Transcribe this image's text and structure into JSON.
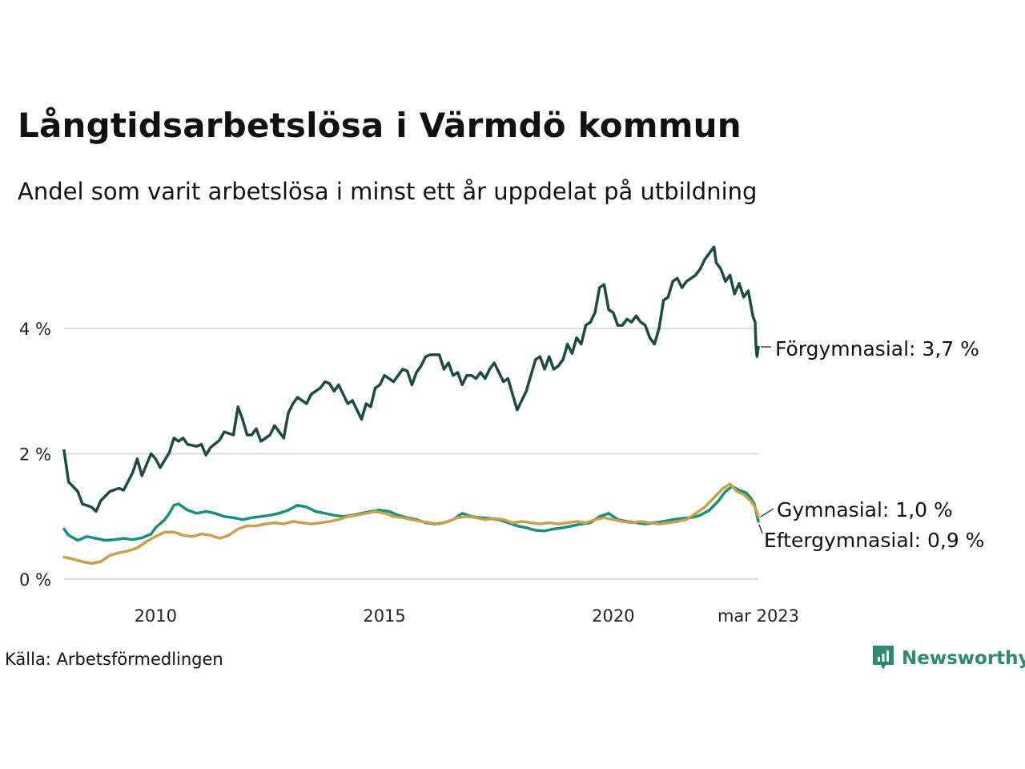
{
  "title": "Långtidsarbetslösa i Värmdö kommun",
  "subtitle": "Andel som varit arbetslösa i minst ett år uppdelat på utbildning",
  "source": "Källa: Arbetsförmedlingen",
  "brand": {
    "name": "Newsworthy",
    "icon": "newsworthy-logo-icon",
    "color": "#2c8a73"
  },
  "chart_data": {
    "type": "line",
    "ylim": [
      0,
      5.5
    ],
    "xlim": [
      2008.0,
      2023.17
    ],
    "yticks": [
      {
        "value": 0,
        "label": "0 %"
      },
      {
        "value": 2,
        "label": "2 %"
      },
      {
        "value": 4,
        "label": "4 %"
      }
    ],
    "xticks": [
      {
        "value": 2010,
        "label": "2010"
      },
      {
        "value": 2015,
        "label": "2015"
      },
      {
        "value": 2020,
        "label": "2020"
      },
      {
        "value": 2023.17,
        "label": "mar 2023"
      }
    ],
    "grid": true,
    "series": [
      {
        "name": "Förgymnasial",
        "end_label": "Förgymnasial: 3,7 %",
        "color": "#1f4a40",
        "points": [
          [
            2008.0,
            2.05
          ],
          [
            2008.1,
            1.55
          ],
          [
            2008.3,
            1.4
          ],
          [
            2008.4,
            1.2
          ],
          [
            2008.6,
            1.15
          ],
          [
            2008.7,
            1.08
          ],
          [
            2008.8,
            1.25
          ],
          [
            2009.0,
            1.4
          ],
          [
            2009.2,
            1.45
          ],
          [
            2009.3,
            1.42
          ],
          [
            2009.5,
            1.7
          ],
          [
            2009.6,
            1.92
          ],
          [
            2009.7,
            1.65
          ],
          [
            2009.9,
            2.0
          ],
          [
            2010.0,
            1.92
          ],
          [
            2010.1,
            1.78
          ],
          [
            2010.3,
            2.02
          ],
          [
            2010.4,
            2.25
          ],
          [
            2010.5,
            2.2
          ],
          [
            2010.6,
            2.25
          ],
          [
            2010.7,
            2.15
          ],
          [
            2010.9,
            2.12
          ],
          [
            2011.0,
            2.15
          ],
          [
            2011.1,
            1.98
          ],
          [
            2011.2,
            2.1
          ],
          [
            2011.4,
            2.22
          ],
          [
            2011.5,
            2.35
          ],
          [
            2011.7,
            2.3
          ],
          [
            2011.8,
            2.75
          ],
          [
            2011.9,
            2.55
          ],
          [
            2012.0,
            2.3
          ],
          [
            2012.1,
            2.3
          ],
          [
            2012.2,
            2.4
          ],
          [
            2012.3,
            2.2
          ],
          [
            2012.5,
            2.3
          ],
          [
            2012.6,
            2.45
          ],
          [
            2012.8,
            2.25
          ],
          [
            2012.9,
            2.65
          ],
          [
            2013.0,
            2.8
          ],
          [
            2013.1,
            2.9
          ],
          [
            2013.3,
            2.8
          ],
          [
            2013.4,
            2.95
          ],
          [
            2013.6,
            3.05
          ],
          [
            2013.7,
            3.15
          ],
          [
            2013.8,
            3.12
          ],
          [
            2013.9,
            3.0
          ],
          [
            2014.0,
            3.1
          ],
          [
            2014.1,
            2.95
          ],
          [
            2014.2,
            2.8
          ],
          [
            2014.3,
            2.85
          ],
          [
            2014.5,
            2.55
          ],
          [
            2014.6,
            2.8
          ],
          [
            2014.7,
            2.75
          ],
          [
            2014.8,
            3.05
          ],
          [
            2014.9,
            3.1
          ],
          [
            2015.0,
            3.25
          ],
          [
            2015.2,
            3.15
          ],
          [
            2015.3,
            3.25
          ],
          [
            2015.4,
            3.35
          ],
          [
            2015.5,
            3.32
          ],
          [
            2015.6,
            3.1
          ],
          [
            2015.7,
            3.3
          ],
          [
            2015.8,
            3.4
          ],
          [
            2015.9,
            3.55
          ],
          [
            2016.0,
            3.58
          ],
          [
            2016.2,
            3.58
          ],
          [
            2016.3,
            3.35
          ],
          [
            2016.4,
            3.45
          ],
          [
            2016.5,
            3.25
          ],
          [
            2016.6,
            3.3
          ],
          [
            2016.7,
            3.1
          ],
          [
            2016.8,
            3.25
          ],
          [
            2016.9,
            3.25
          ],
          [
            2017.0,
            3.2
          ],
          [
            2017.1,
            3.3
          ],
          [
            2017.2,
            3.2
          ],
          [
            2017.3,
            3.35
          ],
          [
            2017.4,
            3.45
          ],
          [
            2017.6,
            3.15
          ],
          [
            2017.7,
            3.2
          ],
          [
            2017.8,
            2.95
          ],
          [
            2017.9,
            2.7
          ],
          [
            2018.0,
            2.85
          ],
          [
            2018.1,
            3.0
          ],
          [
            2018.3,
            3.5
          ],
          [
            2018.4,
            3.55
          ],
          [
            2018.5,
            3.35
          ],
          [
            2018.6,
            3.55
          ],
          [
            2018.7,
            3.35
          ],
          [
            2018.8,
            3.4
          ],
          [
            2018.9,
            3.5
          ],
          [
            2019.0,
            3.75
          ],
          [
            2019.1,
            3.6
          ],
          [
            2019.2,
            3.85
          ],
          [
            2019.3,
            3.75
          ],
          [
            2019.4,
            4.05
          ],
          [
            2019.5,
            4.1
          ],
          [
            2019.6,
            4.25
          ],
          [
            2019.7,
            4.65
          ],
          [
            2019.8,
            4.7
          ],
          [
            2019.9,
            4.3
          ],
          [
            2020.0,
            4.25
          ],
          [
            2020.1,
            4.05
          ],
          [
            2020.2,
            4.05
          ],
          [
            2020.3,
            4.15
          ],
          [
            2020.4,
            4.1
          ],
          [
            2020.5,
            4.2
          ],
          [
            2020.6,
            4.1
          ],
          [
            2020.7,
            4.05
          ],
          [
            2020.8,
            3.85
          ],
          [
            2020.9,
            3.75
          ],
          [
            2021.0,
            4.0
          ],
          [
            2021.1,
            4.45
          ],
          [
            2021.2,
            4.5
          ],
          [
            2021.3,
            4.75
          ],
          [
            2021.4,
            4.8
          ],
          [
            2021.5,
            4.65
          ],
          [
            2021.6,
            4.75
          ],
          [
            2021.7,
            4.8
          ],
          [
            2021.8,
            4.85
          ],
          [
            2021.9,
            4.95
          ],
          [
            2022.0,
            5.1
          ],
          [
            2022.1,
            5.2
          ],
          [
            2022.2,
            5.3
          ],
          [
            2022.25,
            5.05
          ],
          [
            2022.35,
            4.95
          ],
          [
            2022.45,
            4.75
          ],
          [
            2022.55,
            4.85
          ],
          [
            2022.65,
            4.55
          ],
          [
            2022.75,
            4.72
          ],
          [
            2022.85,
            4.5
          ],
          [
            2022.95,
            4.6
          ],
          [
            2023.0,
            4.4
          ],
          [
            2023.05,
            4.2
          ],
          [
            2023.1,
            4.1
          ],
          [
            2023.12,
            3.7
          ],
          [
            2023.14,
            3.55
          ],
          [
            2023.17,
            3.7
          ]
        ]
      },
      {
        "name": "Gymnasial",
        "end_label": "Gymnasial: 1,0 %",
        "color": "#c9a04e",
        "points": [
          [
            2008.0,
            0.35
          ],
          [
            2008.2,
            0.32
          ],
          [
            2008.4,
            0.28
          ],
          [
            2008.6,
            0.25
          ],
          [
            2008.8,
            0.28
          ],
          [
            2009.0,
            0.38
          ],
          [
            2009.2,
            0.42
          ],
          [
            2009.4,
            0.45
          ],
          [
            2009.6,
            0.5
          ],
          [
            2009.8,
            0.6
          ],
          [
            2010.0,
            0.68
          ],
          [
            2010.2,
            0.75
          ],
          [
            2010.4,
            0.75
          ],
          [
            2010.6,
            0.7
          ],
          [
            2010.8,
            0.68
          ],
          [
            2011.0,
            0.72
          ],
          [
            2011.2,
            0.7
          ],
          [
            2011.4,
            0.65
          ],
          [
            2011.6,
            0.7
          ],
          [
            2011.8,
            0.8
          ],
          [
            2012.0,
            0.85
          ],
          [
            2012.2,
            0.85
          ],
          [
            2012.4,
            0.88
          ],
          [
            2012.6,
            0.9
          ],
          [
            2012.8,
            0.88
          ],
          [
            2013.0,
            0.92
          ],
          [
            2013.2,
            0.9
          ],
          [
            2013.4,
            0.88
          ],
          [
            2013.6,
            0.9
          ],
          [
            2013.8,
            0.92
          ],
          [
            2014.0,
            0.95
          ],
          [
            2014.2,
            1.0
          ],
          [
            2014.4,
            1.02
          ],
          [
            2014.6,
            1.05
          ],
          [
            2014.8,
            1.08
          ],
          [
            2015.0,
            1.05
          ],
          [
            2015.2,
            1.0
          ],
          [
            2015.4,
            0.98
          ],
          [
            2015.6,
            0.95
          ],
          [
            2015.8,
            0.92
          ],
          [
            2016.0,
            0.9
          ],
          [
            2016.2,
            0.88
          ],
          [
            2016.4,
            0.92
          ],
          [
            2016.6,
            0.98
          ],
          [
            2016.8,
            1.0
          ],
          [
            2017.0,
            0.98
          ],
          [
            2017.2,
            0.95
          ],
          [
            2017.4,
            0.97
          ],
          [
            2017.6,
            0.95
          ],
          [
            2017.8,
            0.9
          ],
          [
            2018.0,
            0.92
          ],
          [
            2018.2,
            0.9
          ],
          [
            2018.4,
            0.88
          ],
          [
            2018.6,
            0.9
          ],
          [
            2018.8,
            0.88
          ],
          [
            2019.0,
            0.9
          ],
          [
            2019.2,
            0.92
          ],
          [
            2019.4,
            0.9
          ],
          [
            2019.6,
            0.95
          ],
          [
            2019.8,
            0.98
          ],
          [
            2020.0,
            0.95
          ],
          [
            2020.2,
            0.92
          ],
          [
            2020.4,
            0.9
          ],
          [
            2020.6,
            0.92
          ],
          [
            2020.8,
            0.9
          ],
          [
            2021.0,
            0.88
          ],
          [
            2021.2,
            0.9
          ],
          [
            2021.4,
            0.92
          ],
          [
            2021.6,
            0.95
          ],
          [
            2021.8,
            1.05
          ],
          [
            2022.0,
            1.15
          ],
          [
            2022.2,
            1.3
          ],
          [
            2022.4,
            1.45
          ],
          [
            2022.55,
            1.52
          ],
          [
            2022.7,
            1.4
          ],
          [
            2022.85,
            1.35
          ],
          [
            2023.0,
            1.25
          ],
          [
            2023.1,
            1.15
          ],
          [
            2023.17,
            1.0
          ]
        ]
      },
      {
        "name": "Eftergymnasial",
        "end_label": "Eftergymnasial: 0,9 %",
        "color": "#1a8f7a",
        "points": [
          [
            2008.0,
            0.8
          ],
          [
            2008.1,
            0.7
          ],
          [
            2008.3,
            0.62
          ],
          [
            2008.5,
            0.68
          ],
          [
            2008.7,
            0.65
          ],
          [
            2008.9,
            0.62
          ],
          [
            2009.1,
            0.63
          ],
          [
            2009.3,
            0.65
          ],
          [
            2009.5,
            0.63
          ],
          [
            2009.7,
            0.66
          ],
          [
            2009.9,
            0.72
          ],
          [
            2010.0,
            0.82
          ],
          [
            2010.2,
            0.95
          ],
          [
            2010.3,
            1.05
          ],
          [
            2010.4,
            1.18
          ],
          [
            2010.5,
            1.2
          ],
          [
            2010.7,
            1.1
          ],
          [
            2010.9,
            1.05
          ],
          [
            2011.1,
            1.08
          ],
          [
            2011.3,
            1.05
          ],
          [
            2011.5,
            1.0
          ],
          [
            2011.7,
            0.98
          ],
          [
            2011.9,
            0.95
          ],
          [
            2012.1,
            0.98
          ],
          [
            2012.3,
            1.0
          ],
          [
            2012.5,
            1.02
          ],
          [
            2012.7,
            1.05
          ],
          [
            2012.9,
            1.1
          ],
          [
            2013.1,
            1.18
          ],
          [
            2013.3,
            1.15
          ],
          [
            2013.5,
            1.08
          ],
          [
            2013.7,
            1.05
          ],
          [
            2013.9,
            1.02
          ],
          [
            2014.1,
            1.0
          ],
          [
            2014.3,
            1.02
          ],
          [
            2014.5,
            1.05
          ],
          [
            2014.7,
            1.08
          ],
          [
            2014.9,
            1.1
          ],
          [
            2015.1,
            1.08
          ],
          [
            2015.3,
            1.02
          ],
          [
            2015.5,
            0.98
          ],
          [
            2015.7,
            0.95
          ],
          [
            2015.9,
            0.9
          ],
          [
            2016.1,
            0.88
          ],
          [
            2016.3,
            0.9
          ],
          [
            2016.5,
            0.95
          ],
          [
            2016.7,
            1.05
          ],
          [
            2016.9,
            1.0
          ],
          [
            2017.1,
            0.98
          ],
          [
            2017.3,
            0.97
          ],
          [
            2017.5,
            0.95
          ],
          [
            2017.7,
            0.9
          ],
          [
            2017.9,
            0.85
          ],
          [
            2018.1,
            0.82
          ],
          [
            2018.3,
            0.78
          ],
          [
            2018.5,
            0.77
          ],
          [
            2018.7,
            0.8
          ],
          [
            2018.9,
            0.82
          ],
          [
            2019.1,
            0.85
          ],
          [
            2019.3,
            0.88
          ],
          [
            2019.5,
            0.9
          ],
          [
            2019.7,
            1.0
          ],
          [
            2019.9,
            1.05
          ],
          [
            2020.1,
            0.95
          ],
          [
            2020.3,
            0.92
          ],
          [
            2020.5,
            0.9
          ],
          [
            2020.7,
            0.88
          ],
          [
            2020.9,
            0.9
          ],
          [
            2021.1,
            0.92
          ],
          [
            2021.3,
            0.95
          ],
          [
            2021.5,
            0.97
          ],
          [
            2021.7,
            0.98
          ],
          [
            2021.9,
            1.02
          ],
          [
            2022.1,
            1.1
          ],
          [
            2022.3,
            1.25
          ],
          [
            2022.45,
            1.4
          ],
          [
            2022.6,
            1.48
          ],
          [
            2022.75,
            1.42
          ],
          [
            2022.9,
            1.38
          ],
          [
            2023.0,
            1.3
          ],
          [
            2023.08,
            1.2
          ],
          [
            2023.13,
            1.05
          ],
          [
            2023.17,
            0.92
          ]
        ]
      }
    ]
  }
}
